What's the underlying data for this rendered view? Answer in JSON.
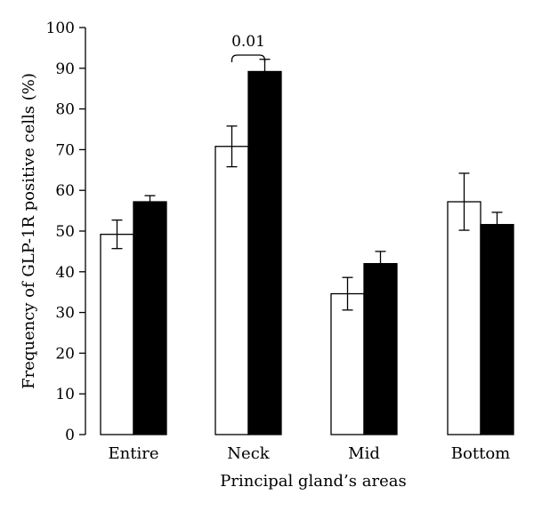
{
  "chart_data": {
    "type": "bar",
    "title": "",
    "xlabel": "Principal gland’s areas",
    "ylabel": "Frequency of GLP-1R positive cells (%)",
    "ylim": [
      0,
      100
    ],
    "yticks": [
      0,
      10,
      20,
      30,
      40,
      50,
      60,
      70,
      80,
      90,
      100
    ],
    "categories": [
      "Entire",
      "Neck",
      "Mid",
      "Bottom"
    ],
    "series": [
      {
        "color": "#ffffff",
        "values": [
          49.2,
          70.8,
          34.6,
          57.2
        ],
        "errors": [
          3.5,
          5.0,
          4.0,
          7.0
        ]
      },
      {
        "color": "#000000",
        "values": [
          57.2,
          89.2,
          42.0,
          51.6
        ],
        "errors": [
          1.5,
          3.0,
          3.0,
          3.0
        ]
      }
    ],
    "annotations": [
      {
        "text": "0.01",
        "category": "Neck"
      }
    ],
    "grid": false,
    "legend": "none"
  }
}
